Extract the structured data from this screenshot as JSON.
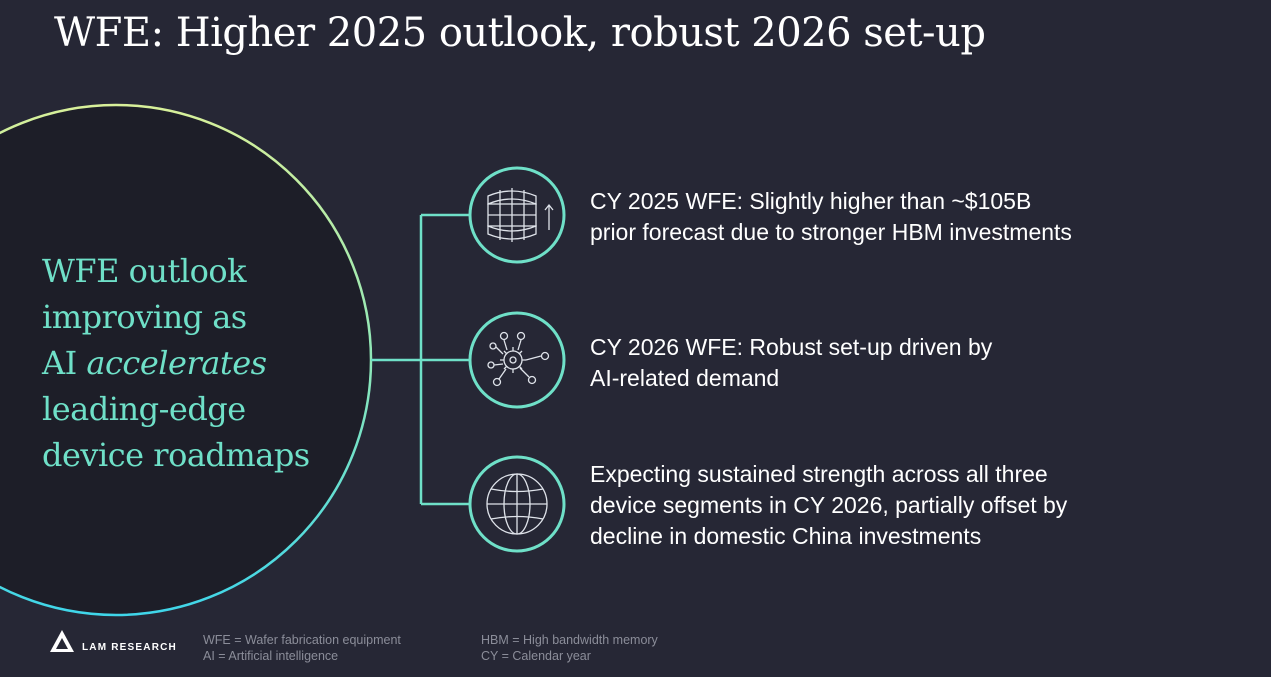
{
  "slide": {
    "title": "WFE: Higher 2025 outlook, robust 2026 set-up"
  },
  "headline": {
    "line1": "WFE outlook",
    "line2": "improving as",
    "line3_prefix": "AI ",
    "line3_emphasis": "accelerates",
    "line4": "leading-edge",
    "line5": "device roadmaps"
  },
  "points": [
    {
      "icon": "wafer-growth-icon",
      "lines": [
        "CY 2025 WFE: Slightly higher than ~$105B",
        "prior forecast due to stronger HBM investments"
      ]
    },
    {
      "icon": "ai-network-icon",
      "lines": [
        "CY 2026 WFE: Robust set-up driven by",
        "AI-related demand"
      ]
    },
    {
      "icon": "globe-icon",
      "lines": [
        "Expecting sustained strength across all three",
        "device segments in CY 2026, partially offset by",
        "decline in domestic China investments"
      ]
    }
  ],
  "logo": {
    "text": "LAM RESEARCH"
  },
  "footnotes": {
    "col1": [
      "WFE = Wafer fabrication equipment",
      "AI = Artificial intelligence"
    ],
    "col2": [
      "HBM = High bandwidth memory",
      "CY = Calendar year"
    ]
  },
  "colors": {
    "background": "#262735",
    "accent_teal": "#6fe0c8",
    "circle_dark": "#1d1e28"
  }
}
